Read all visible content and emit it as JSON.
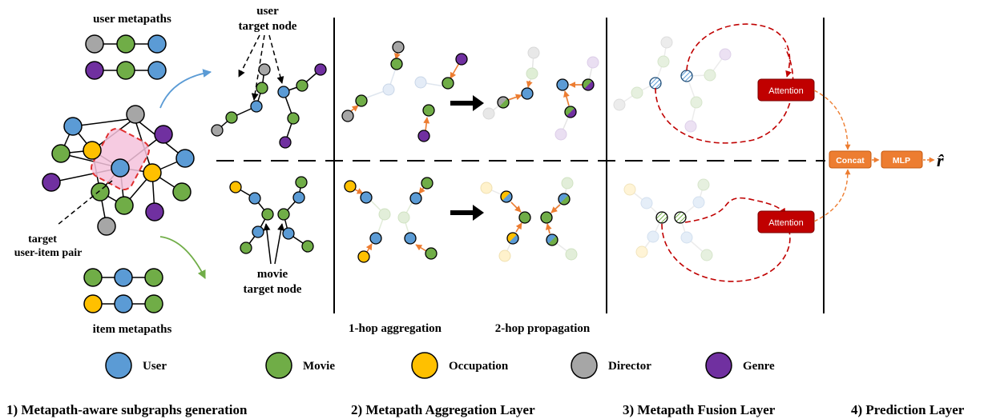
{
  "labels": {
    "user_metapaths": "user metapaths",
    "item_metapaths": "item metapaths",
    "user_target_1": "user",
    "user_target_2": "target node",
    "movie_target_1": "movie",
    "movie_target_2": "target node",
    "pair_1": "target",
    "pair_2": "user-item pair",
    "one_hop": "1-hop aggregation",
    "two_hop": "2-hop propagation",
    "r_hat": "r̂"
  },
  "boxes": {
    "attention_top": "Attention",
    "attention_bottom": "Attention",
    "concat": "Concat",
    "mlp": "MLP"
  },
  "legend": [
    {
      "label": "User",
      "color": "#5b9bd5"
    },
    {
      "label": "Movie",
      "color": "#70ad47"
    },
    {
      "label": "Occupation",
      "color": "#ffc000"
    },
    {
      "label": "Director",
      "color": "#a6a6a6"
    },
    {
      "label": "Genre",
      "color": "#7030a0"
    }
  ],
  "sections": [
    "1) Metapath-aware subgraphs generation",
    "2) Metapath Aggregation Layer",
    "3) Metapath Fusion Layer",
    "4) Prediction Layer"
  ],
  "colors": {
    "user": "#5b9bd5",
    "movie": "#70ad47",
    "occupation": "#ffc000",
    "director": "#a6a6a6",
    "genre": "#7030a0",
    "attention": "#c00000",
    "orange": "#ed7d31"
  }
}
